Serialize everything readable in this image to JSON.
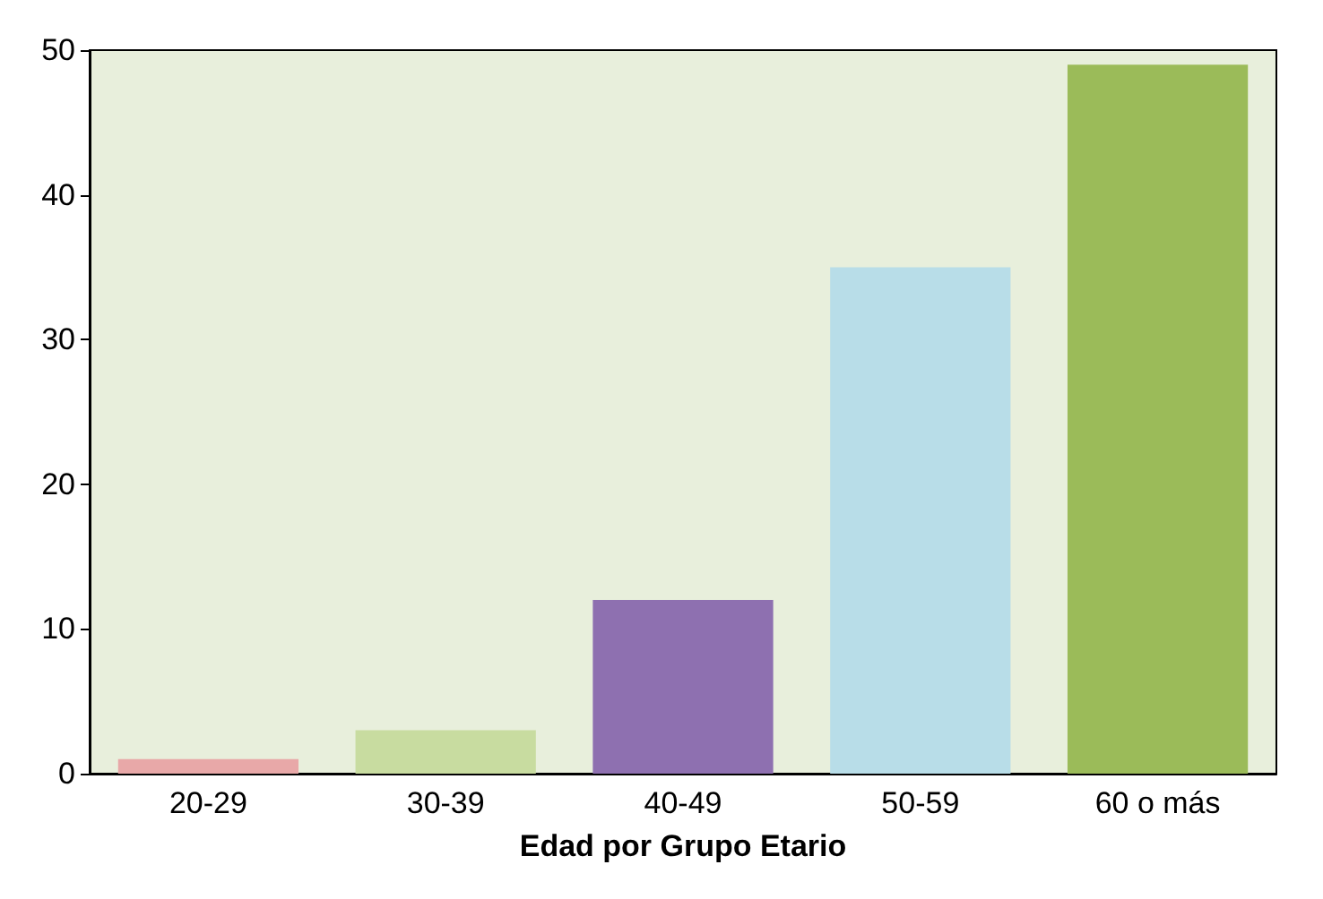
{
  "chart_data": {
    "type": "bar",
    "xlabel": "Edad por Grupo Etario",
    "categories": [
      "20-29",
      "30-39",
      "40-49",
      "50-59",
      "60 o más"
    ],
    "values": [
      1,
      3,
      12,
      35,
      49
    ],
    "colors": [
      "#e8a8a8",
      "#c8dca0",
      "#8e70b0",
      "#b8dde8",
      "#9bbb59"
    ],
    "ylim": [
      0,
      50
    ],
    "yticks": [
      0,
      10,
      20,
      30,
      40,
      50
    ],
    "grid": false
  }
}
